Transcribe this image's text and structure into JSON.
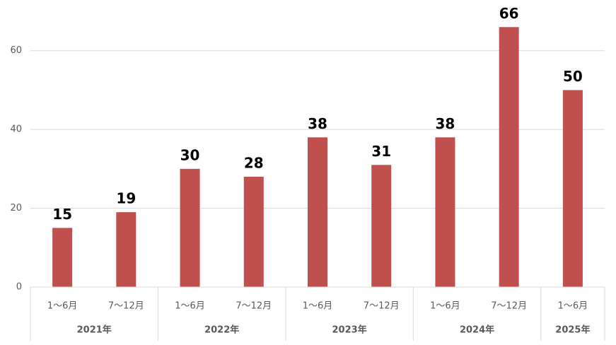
{
  "chart_data": {
    "type": "bar",
    "groups": [
      {
        "label": "2021年",
        "categories": [
          "1～6月",
          "7～12月"
        ]
      },
      {
        "label": "2022年",
        "categories": [
          "1～6月",
          "7～12月"
        ]
      },
      {
        "label": "2023年",
        "categories": [
          "1～6月",
          "7～12月"
        ]
      },
      {
        "label": "2024年",
        "categories": [
          "1～6月",
          "7～12月"
        ]
      },
      {
        "label": "2025年",
        "categories": [
          "1～6月"
        ]
      }
    ],
    "values": [
      15,
      19,
      30,
      28,
      38,
      31,
      38,
      66,
      50
    ],
    "color": "#c0504d",
    "ylim": [
      0,
      70
    ],
    "yticks": [
      0,
      20,
      40,
      60
    ],
    "grid": true
  }
}
